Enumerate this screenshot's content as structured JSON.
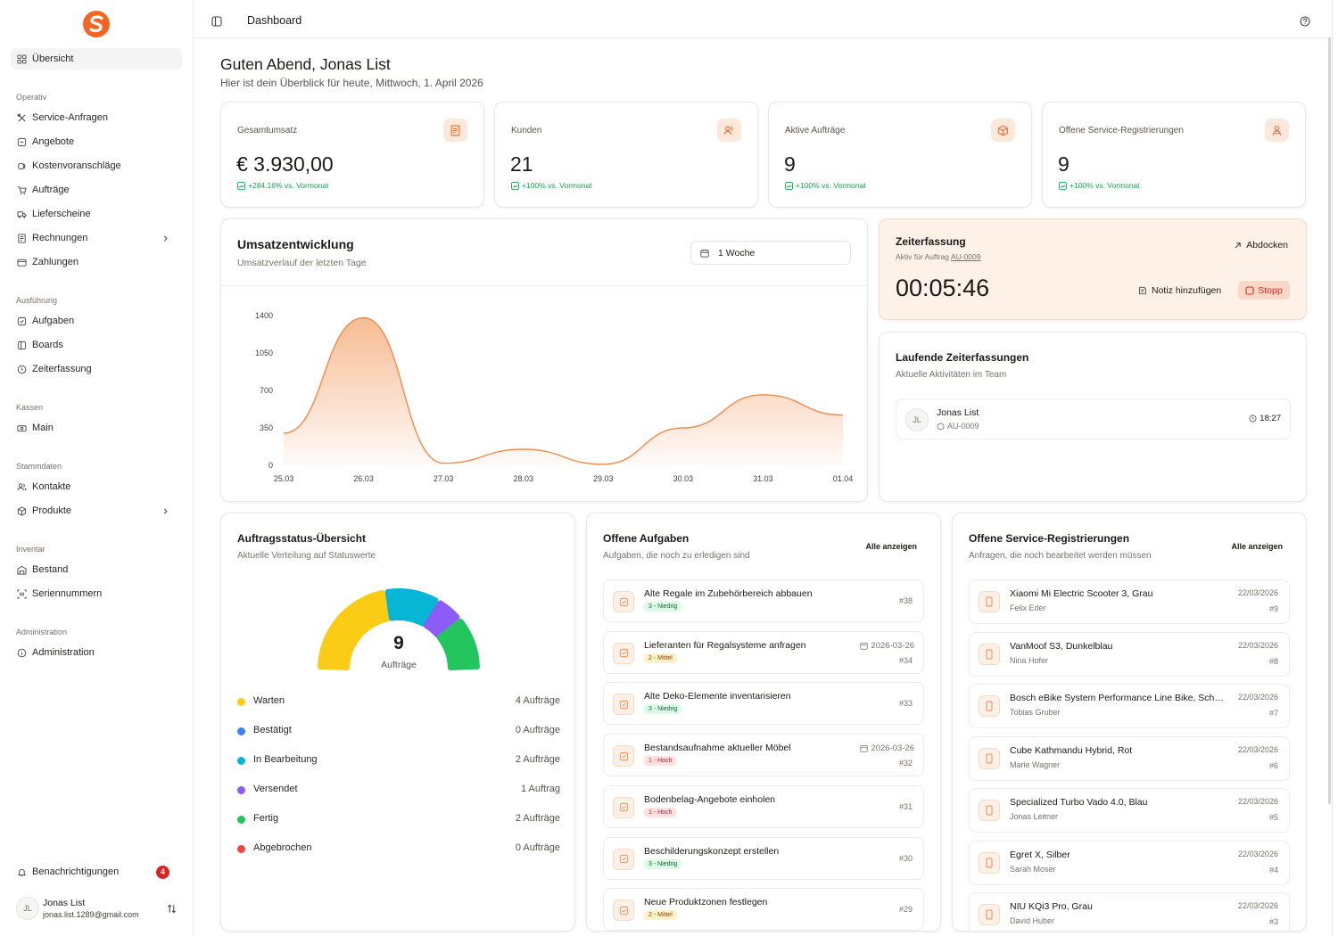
{
  "sidebar": {
    "active": "Übersicht",
    "sections": [
      {
        "title": "Operativ",
        "items": [
          "Service-Anfragen",
          "Angebote",
          "Kostenvoranschläge",
          "Aufträge",
          "Lieferscheine",
          "Rechnungen",
          "Zahlungen"
        ]
      },
      {
        "title": "Ausführung",
        "items": [
          "Aufgaben",
          "Boards",
          "Zeiterfassung"
        ]
      },
      {
        "title": "Kassen",
        "items": [
          "Main"
        ]
      },
      {
        "title": "Stammdaten",
        "items": [
          "Kontakte",
          "Produkte"
        ]
      },
      {
        "title": "Inventar",
        "items": [
          "Bestand",
          "Seriennummern"
        ]
      },
      {
        "title": "Administration",
        "items": [
          "Administration"
        ]
      }
    ],
    "notifications_label": "Benachrichtigungen",
    "notifications_count": "4",
    "user": {
      "initials": "JL",
      "name": "Jonas List",
      "email": "jonas.list.1289@gmail.com"
    }
  },
  "topbar": {
    "title": "Dashboard"
  },
  "greeting": {
    "title": "Guten Abend, Jonas List",
    "subtitle": "Hier ist dein Überblick für heute, Mittwoch, 1. April 2026"
  },
  "kpis": [
    {
      "label": "Gesamtumsatz",
      "value": "€ 3.930,00",
      "trend": "+284.16% vs. Vormonat",
      "icon": "invoices-icon"
    },
    {
      "label": "Kunden",
      "value": "21",
      "trend": "+100% vs. Vormonat",
      "icon": "users-icon"
    },
    {
      "label": "Aktive Aufträge",
      "value": "9",
      "trend": "+100% vs. Vormonat",
      "icon": "box-icon"
    },
    {
      "label": "Offene Service-Registrierungen",
      "value": "9",
      "trend": "+100% vs. Vormonat",
      "icon": "person-icon"
    }
  ],
  "revenue": {
    "title": "Umsatzentwicklung",
    "subtitle": "Umsatzverlauf der letzten Tage",
    "range_label": "1 Woche"
  },
  "chart_data": {
    "type": "area",
    "categories": [
      "25.03",
      "26.03",
      "27.03",
      "28.03",
      "29.03",
      "30.03",
      "31.03",
      "01.04"
    ],
    "values": [
      300,
      1380,
      20,
      150,
      10,
      350,
      660,
      470
    ],
    "yticks": [
      0,
      350,
      700,
      1050,
      1400
    ],
    "ylim": [
      0,
      1500
    ],
    "grid": false,
    "color": "#f4a56f"
  },
  "timer": {
    "title": "Zeiterfassung",
    "subtitle_prefix": "Aktiv für Auftrag",
    "order_ref": "AU-0009",
    "undock_label": "Abdocken",
    "elapsed": "00:05:46",
    "note_label": "Notiz hinzufügen",
    "stop_label": "Stopp"
  },
  "running": {
    "title": "Laufende Zeiterfassungen",
    "subtitle": "Aktuelle Aktivitäten im Team",
    "entries": [
      {
        "initials": "JL",
        "name": "Jonas List",
        "ref": "AU-0009",
        "time": "18:27"
      }
    ]
  },
  "status": {
    "title": "Auftragsstatus-Übersicht",
    "subtitle": "Aktuelle Verteilung auf Statuswerte",
    "total": "9",
    "total_label": "Aufträge",
    "rows": [
      {
        "name": "Warten",
        "count": 4,
        "count_label": "4 Aufträge",
        "color": "#facc15"
      },
      {
        "name": "Bestätigt",
        "count": 0,
        "count_label": "0 Aufträge",
        "color": "#3b82f6"
      },
      {
        "name": "In Bearbeitung",
        "count": 2,
        "count_label": "2 Aufträge",
        "color": "#06b6d4"
      },
      {
        "name": "Versendet",
        "count": 1,
        "count_label": "1 Auftrag",
        "color": "#8b5cf6"
      },
      {
        "name": "Fertig",
        "count": 2,
        "count_label": "2 Aufträge",
        "color": "#22c55e"
      },
      {
        "name": "Abgebrochen",
        "count": 0,
        "count_label": "0 Aufträge",
        "color": "#ef4444"
      }
    ]
  },
  "tasks": {
    "title": "Offene Aufgaben",
    "subtitle": "Aufgaben, die noch zu erledigen sind",
    "show_all": "Alle anzeigen",
    "items": [
      {
        "title": "Alte Regale im Zubehörbereich abbauen",
        "prio": "3 - Niedrig",
        "level": "low",
        "date": "",
        "num": "#38"
      },
      {
        "title": "Lieferanten für Regalsysteme anfragen",
        "prio": "2 - Mittel",
        "level": "mid",
        "date": "2026-03-26",
        "num": "#34"
      },
      {
        "title": "Alte Deko-Elemente inventarisieren",
        "prio": "3 - Niedrig",
        "level": "low",
        "date": "",
        "num": "#33"
      },
      {
        "title": "Bestandsaufnahme aktueller Möbel",
        "prio": "1 - Hoch",
        "level": "high",
        "date": "2026-03-26",
        "num": "#32"
      },
      {
        "title": "Bodenbelag-Angebote einholen",
        "prio": "1 - Hoch",
        "level": "high",
        "date": "",
        "num": "#31"
      },
      {
        "title": "Beschilderungskonzept erstellen",
        "prio": "3 - Niedrig",
        "level": "low",
        "date": "",
        "num": "#30"
      },
      {
        "title": "Neue Produktzonen festlegen",
        "prio": "2 - Mittel",
        "level": "mid",
        "date": "",
        "num": "#29"
      }
    ]
  },
  "services": {
    "title": "Offene Service-Registrierungen",
    "subtitle": "Anfragen, die noch bearbeitet werden müssen",
    "show_all": "Alle anzeigen",
    "items": [
      {
        "title": "Xiaomi Mi Electric Scooter 3, Grau",
        "person": "Felix Eder",
        "date": "22/03/2026",
        "num": "#9"
      },
      {
        "title": "VanMoof S3, Dunkelblau",
        "person": "Nina Hofer",
        "date": "22/03/2026",
        "num": "#8"
      },
      {
        "title": "Bosch eBike System Performance Line Bike, Schwarz",
        "person": "Tobias Gruber",
        "date": "22/03/2026",
        "num": "#7"
      },
      {
        "title": "Cube Kathmandu Hybrid, Rot",
        "person": "Marie Wagner",
        "date": "22/03/2026",
        "num": "#6"
      },
      {
        "title": "Specialized Turbo Vado 4.0, Blau",
        "person": "Jonas Leitner",
        "date": "22/03/2026",
        "num": "#5"
      },
      {
        "title": "Egret X, Silber",
        "person": "Sarah Moser",
        "date": "22/03/2026",
        "num": "#4"
      },
      {
        "title": "NIU KQi3 Pro, Grau",
        "person": "David Huber",
        "date": "22/03/2026",
        "num": "#3"
      }
    ]
  }
}
